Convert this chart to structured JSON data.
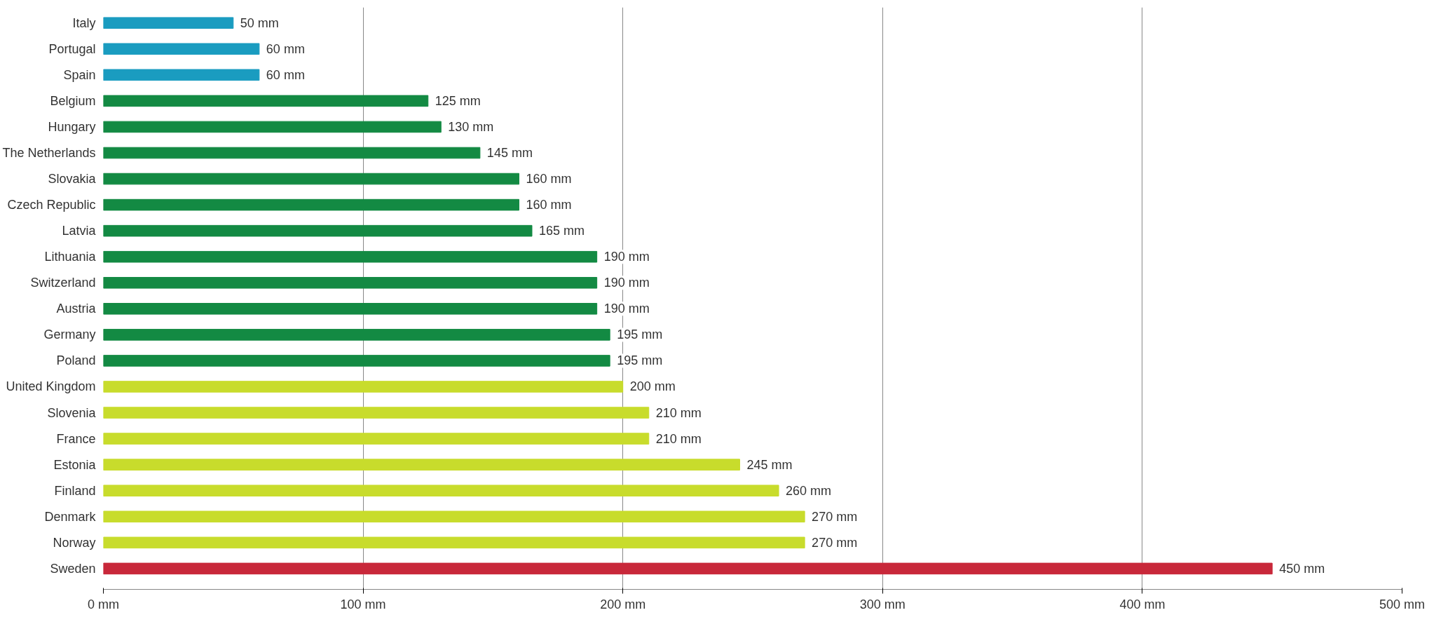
{
  "chart_data": {
    "type": "bar",
    "orientation": "horizontal",
    "categories": [
      "Italy",
      "Portugal",
      "Spain",
      "Belgium",
      "Hungary",
      "The Netherlands",
      "Slovakia",
      "Czech Republic",
      "Latvia",
      "Lithuania",
      "Switzerland",
      "Austria",
      "Germany",
      "Poland",
      "United Kingdom",
      "Slovenia",
      "France",
      "Estonia",
      "Finland",
      "Denmark",
      "Norway",
      "Sweden"
    ],
    "values": [
      50,
      60,
      60,
      125,
      130,
      145,
      160,
      160,
      165,
      190,
      190,
      190,
      195,
      195,
      200,
      210,
      210,
      245,
      260,
      270,
      270,
      450
    ],
    "value_labels": [
      "50 mm",
      "60 mm",
      "60 mm",
      "125 mm",
      "130 mm",
      "145 mm",
      "160 mm",
      "160 mm",
      "165 mm",
      "190 mm",
      "190 mm",
      "190 mm",
      "195 mm",
      "195 mm",
      "200 mm",
      "210 mm",
      "210 mm",
      "245 mm",
      "260 mm",
      "270 mm",
      "270 mm",
      "450 mm"
    ],
    "colors": [
      "#1a9cc0",
      "#1a9cc0",
      "#1a9cc0",
      "#138a43",
      "#138a43",
      "#138a43",
      "#138a43",
      "#138a43",
      "#138a43",
      "#138a43",
      "#138a43",
      "#138a43",
      "#138a43",
      "#138a43",
      "#c8dc2c",
      "#c8dc2c",
      "#c8dc2c",
      "#c8dc2c",
      "#c8dc2c",
      "#c8dc2c",
      "#c8dc2c",
      "#c8283a"
    ],
    "xlim": [
      0,
      500
    ],
    "xticks": [
      {
        "value": 0,
        "label": "0 mm"
      },
      {
        "value": 100,
        "label": "100 mm"
      },
      {
        "value": 200,
        "label": "200 mm"
      },
      {
        "value": 300,
        "label": "300 mm"
      },
      {
        "value": 400,
        "label": "400 mm"
      },
      {
        "value": 500,
        "label": "500 mm"
      }
    ],
    "grid": "x"
  }
}
